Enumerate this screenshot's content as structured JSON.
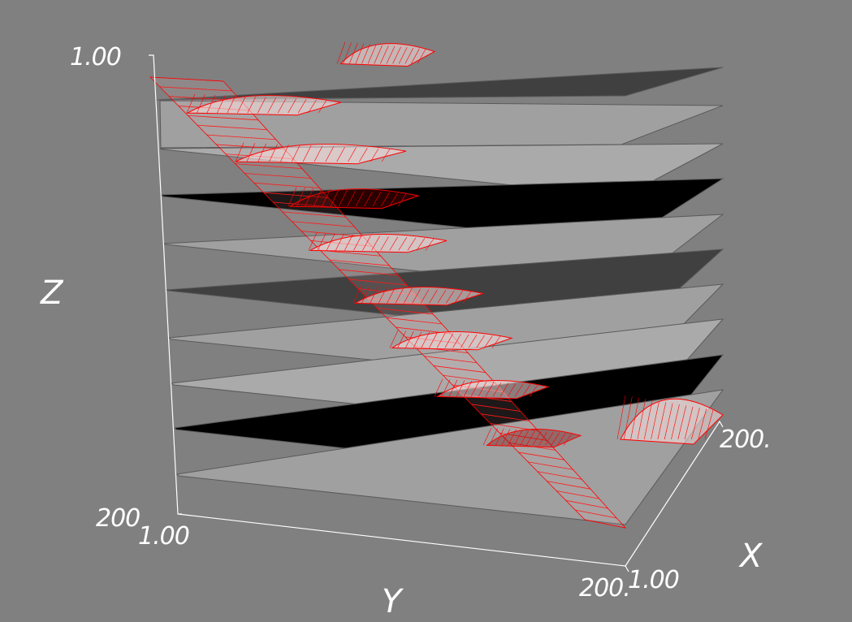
{
  "scene": {
    "background": "#808080",
    "mesh_color": "#ff0000",
    "plane_fill_colors": [
      "#404040",
      "#a0a0a0",
      "#aaaaaa",
      "#000000",
      "#a0a0a0",
      "#404040",
      "#a0a0a0",
      "#aaaaaa",
      "#000000",
      "#a0a0a0"
    ]
  },
  "axes": {
    "z": {
      "title": "Z",
      "tick_top": "1.00",
      "tick_bottom": "200"
    },
    "y": {
      "title": "Y",
      "tick_start": "1.00",
      "tick_end": "200."
    },
    "x": {
      "title": "X",
      "tick_start": "1.00",
      "tick_end": "200."
    }
  }
}
